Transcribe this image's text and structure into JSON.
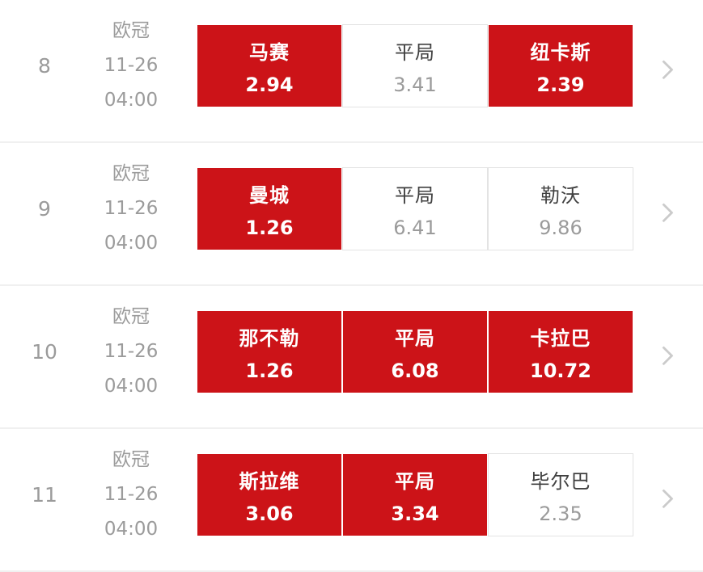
{
  "accent_color": "#cc1318",
  "rows": [
    {
      "index": "8",
      "league": "欧冠",
      "date": "11-26",
      "time": "04:00",
      "cells": [
        {
          "label": "马赛",
          "odds": "2.94",
          "selected": true
        },
        {
          "label": "平局",
          "odds": "3.41",
          "selected": false
        },
        {
          "label": "纽卡斯",
          "odds": "2.39",
          "selected": true
        }
      ]
    },
    {
      "index": "9",
      "league": "欧冠",
      "date": "11-26",
      "time": "04:00",
      "cells": [
        {
          "label": "曼城",
          "odds": "1.26",
          "selected": true
        },
        {
          "label": "平局",
          "odds": "6.41",
          "selected": false
        },
        {
          "label": "勒沃",
          "odds": "9.86",
          "selected": false
        }
      ]
    },
    {
      "index": "10",
      "league": "欧冠",
      "date": "11-26",
      "time": "04:00",
      "cells": [
        {
          "label": "那不勒",
          "odds": "1.26",
          "selected": true
        },
        {
          "label": "平局",
          "odds": "6.08",
          "selected": true
        },
        {
          "label": "卡拉巴",
          "odds": "10.72",
          "selected": true
        }
      ]
    },
    {
      "index": "11",
      "league": "欧冠",
      "date": "11-26",
      "time": "04:00",
      "cells": [
        {
          "label": "斯拉维",
          "odds": "3.06",
          "selected": true
        },
        {
          "label": "平局",
          "odds": "3.34",
          "selected": true
        },
        {
          "label": "毕尔巴",
          "odds": "2.35",
          "selected": false
        }
      ]
    }
  ]
}
